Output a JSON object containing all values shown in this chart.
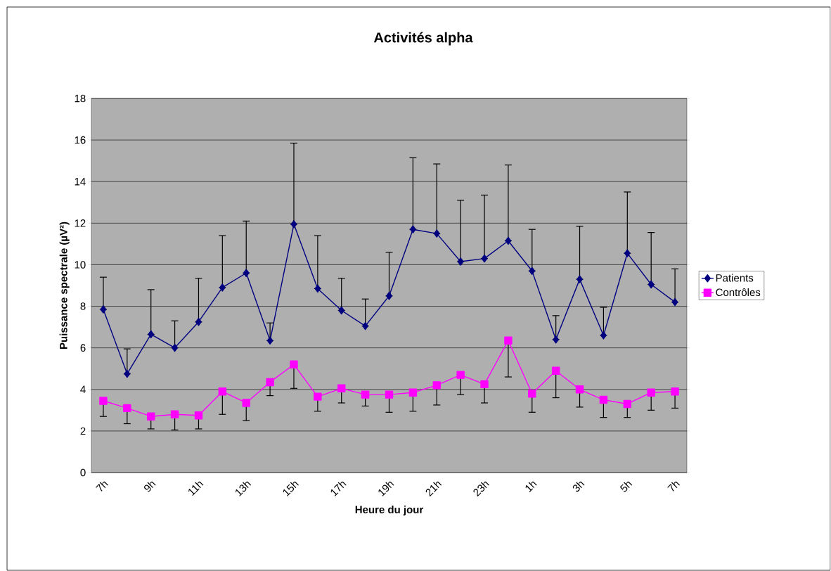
{
  "chart_data": {
    "type": "line",
    "title": "Activités alpha",
    "xlabel": "Heure du jour",
    "ylabel": "Puissance spectrale (µV²)",
    "categories": [
      "7h",
      null,
      "9h",
      null,
      "11h",
      null,
      "13h",
      null,
      "15h",
      null,
      "17h",
      null,
      "19h",
      null,
      "21h",
      null,
      "23h",
      null,
      "1h",
      null,
      "3h",
      null,
      "5h",
      null,
      "7h"
    ],
    "series": [
      {
        "name": "Patients",
        "color": "#000080",
        "marker": "diamond",
        "values": [
          7.85,
          4.75,
          6.65,
          6.0,
          7.25,
          8.9,
          9.6,
          6.35,
          11.95,
          8.85,
          7.8,
          7.05,
          8.5,
          11.7,
          11.5,
          10.15,
          10.3,
          11.15,
          9.7,
          6.4,
          9.3,
          6.6,
          10.55,
          9.05,
          8.2
        ],
        "errors": [
          [
            7.85,
            9.4
          ],
          [
            4.75,
            5.95
          ],
          [
            6.65,
            8.8
          ],
          [
            6.0,
            7.3
          ],
          [
            7.25,
            9.35
          ],
          [
            8.9,
            11.4
          ],
          [
            9.6,
            12.1
          ],
          [
            6.35,
            7.2
          ],
          [
            11.95,
            15.85
          ],
          [
            8.85,
            11.4
          ],
          [
            7.8,
            9.35
          ],
          [
            7.05,
            8.35
          ],
          [
            8.5,
            10.6
          ],
          [
            11.7,
            15.15
          ],
          [
            11.5,
            14.85
          ],
          [
            10.15,
            13.1
          ],
          [
            10.3,
            13.35
          ],
          [
            11.15,
            14.8
          ],
          [
            9.7,
            11.7
          ],
          [
            6.4,
            7.55
          ],
          [
            9.3,
            11.85
          ],
          [
            6.6,
            7.95
          ],
          [
            10.55,
            13.5
          ],
          [
            9.05,
            11.55
          ],
          [
            8.2,
            9.8
          ]
        ]
      },
      {
        "name": "Contrôles",
        "color": "#ff00ff",
        "marker": "square",
        "values": [
          3.45,
          3.1,
          2.7,
          2.8,
          2.75,
          3.9,
          3.35,
          4.35,
          5.2,
          3.65,
          4.05,
          3.75,
          3.75,
          3.85,
          4.2,
          4.7,
          4.25,
          6.35,
          3.8,
          4.9,
          4.0,
          3.5,
          3.3,
          3.85,
          3.9
        ],
        "errors": [
          [
            2.7,
            3.45
          ],
          [
            2.35,
            3.1
          ],
          [
            2.1,
            2.7
          ],
          [
            2.05,
            2.8
          ],
          [
            2.1,
            2.75
          ],
          [
            2.8,
            3.9
          ],
          [
            2.5,
            3.35
          ],
          [
            3.7,
            4.35
          ],
          [
            4.05,
            5.2
          ],
          [
            2.95,
            3.65
          ],
          [
            3.35,
            4.05
          ],
          [
            3.2,
            3.75
          ],
          [
            2.9,
            3.75
          ],
          [
            2.95,
            3.85
          ],
          [
            3.25,
            4.2
          ],
          [
            3.75,
            4.7
          ],
          [
            3.35,
            4.25
          ],
          [
            4.6,
            6.35
          ],
          [
            2.9,
            3.8
          ],
          [
            3.6,
            4.9
          ],
          [
            3.15,
            4.0
          ],
          [
            2.65,
            3.5
          ],
          [
            2.65,
            3.3
          ],
          [
            3.0,
            3.85
          ],
          [
            3.1,
            3.9
          ]
        ]
      }
    ],
    "ylim": [
      0,
      18
    ],
    "yticks": [
      0,
      2,
      4,
      6,
      8,
      10,
      12,
      14,
      16,
      18
    ],
    "grid": "y",
    "legend": "right",
    "line_style": "solid"
  }
}
